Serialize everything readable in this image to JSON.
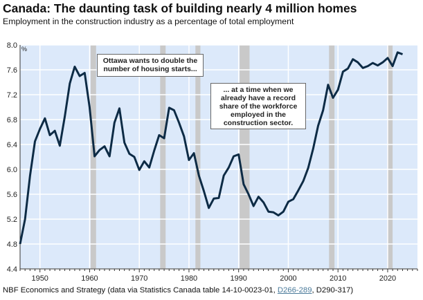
{
  "chart_data": {
    "type": "line",
    "title": "Canada: The daunting task of building nearly 4 million homes",
    "subtitle": "Employment in the construction industry as a percentage of total employment",
    "ylabel": "%",
    "xlim": [
      1946,
      2026
    ],
    "ylim": [
      4.4,
      8.0
    ],
    "x_ticks": [
      1950,
      1960,
      1970,
      1980,
      1990,
      2000,
      2010,
      2020
    ],
    "y_ticks": [
      "4.4",
      "4.8",
      "5.2",
      "5.6",
      "6.0",
      "6.4",
      "6.8",
      "7.2",
      "7.6",
      "8.0"
    ],
    "grid": true,
    "colors": {
      "background": "#dce9fa",
      "line": "#0d2b45",
      "recession": "#c9c9c9",
      "grid": "#ffffff"
    },
    "recession_shading": [
      [
        1960.2,
        1961.3
      ],
      [
        1974.2,
        1975.3
      ],
      [
        1981.3,
        1982.3
      ],
      [
        1990.2,
        1992.2
      ],
      [
        2008.2,
        2009.3
      ],
      [
        2020.0,
        2021.0
      ]
    ],
    "x": [
      1946,
      1947,
      1948,
      1949,
      1950,
      1951,
      1952,
      1953,
      1954,
      1955,
      1956,
      1957,
      1958,
      1959,
      1960,
      1961,
      1962,
      1963,
      1964,
      1965,
      1966,
      1967,
      1968,
      1969,
      1970,
      1971,
      1972,
      1973,
      1974,
      1975,
      1976,
      1977,
      1978,
      1979,
      1980,
      1981,
      1982,
      1983,
      1984,
      1985,
      1986,
      1987,
      1988,
      1989,
      1990,
      1991,
      1992,
      1993,
      1994,
      1995,
      1996,
      1997,
      1998,
      1999,
      2000,
      2001,
      2002,
      2003,
      2004,
      2005,
      2006,
      2007,
      2008,
      2009,
      2010,
      2011,
      2012,
      2013,
      2014,
      2015,
      2016,
      2017,
      2018,
      2019,
      2020,
      2021,
      2022,
      2023
    ],
    "series": [
      {
        "values": [
          4.8,
          5.2,
          5.9,
          6.45,
          6.65,
          6.82,
          6.55,
          6.62,
          6.38,
          6.85,
          7.38,
          7.65,
          7.5,
          7.55,
          7.0,
          6.21,
          6.31,
          6.37,
          6.21,
          6.75,
          6.98,
          6.43,
          6.25,
          6.2,
          5.99,
          6.13,
          6.03,
          6.3,
          6.55,
          6.5,
          6.99,
          6.95,
          6.75,
          6.53,
          6.15,
          6.26,
          5.9,
          5.65,
          5.38,
          5.53,
          5.54,
          5.9,
          6.03,
          6.21,
          6.24,
          5.76,
          5.6,
          5.41,
          5.56,
          5.47,
          5.32,
          5.31,
          5.26,
          5.32,
          5.48,
          5.52,
          5.66,
          5.81,
          6.02,
          6.33,
          6.7,
          6.95,
          7.36,
          7.15,
          7.28,
          7.57,
          7.62,
          7.77,
          7.72,
          7.63,
          7.66,
          7.71,
          7.67,
          7.72,
          7.79,
          7.66,
          7.88,
          7.85
        ]
      }
    ],
    "annotations": [
      "Ottawa wants to double the number of housing starts...",
      "... at a time when we already have a record share of the workforce employed in the construction sector."
    ]
  },
  "footer": {
    "prefix": "NBF Economics and Strategy (data via Statistics Canada table 14-10-0023-01, ",
    "link": "D266-289",
    "suffix": ", D290-317)"
  }
}
